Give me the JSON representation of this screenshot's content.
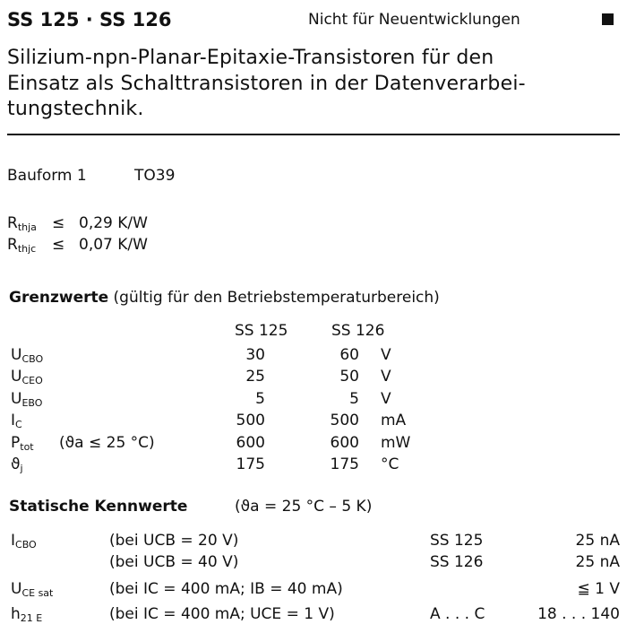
{
  "header": {
    "title": "SS 125 · SS 126",
    "note": "Nicht für Neuentwicklungen",
    "marker_icon": "black-square"
  },
  "description": [
    "Silizium-npn-Planar-Epitaxie-Transistoren  für  den",
    "Einsatz als Schalttransistoren in der Datenverarbei-",
    "tungstechnik."
  ],
  "package": {
    "label": "Bauform 1",
    "value": "TO39"
  },
  "thermal": [
    {
      "symbol": "R",
      "sub": "thja",
      "rel": "≤",
      "value": "0,29 K/W"
    },
    {
      "symbol": "R",
      "sub": "thjc",
      "rel": "≤",
      "value": "0,07 K/W"
    }
  ],
  "limits": {
    "heading": "Grenzwerte",
    "heading_note": "(gültig für den Betriebstemperaturbereich)",
    "columns": [
      "SS 125",
      "SS 126"
    ],
    "rows": [
      {
        "symbol": "U",
        "sub": "CBO",
        "cond": "",
        "v1": "30",
        "v2": "60",
        "unit": "V"
      },
      {
        "symbol": "U",
        "sub": "CEO",
        "cond": "",
        "v1": "25",
        "v2": "50",
        "unit": "V"
      },
      {
        "symbol": "U",
        "sub": "EBO",
        "cond": "",
        "v1": "5",
        "v2": "5",
        "unit": "V"
      },
      {
        "symbol": "I",
        "sub": "C",
        "cond": "",
        "v1": "500",
        "v2": "500",
        "unit": "mA"
      },
      {
        "symbol": "P",
        "sub": "tot",
        "cond": "(ϑa ≤ 25 °C)",
        "v1": "600",
        "v2": "600",
        "unit": "mW"
      },
      {
        "symbol": "ϑ",
        "sub": "j",
        "cond": "",
        "v1": "175",
        "v2": "175",
        "unit": "°C"
      }
    ]
  },
  "static": {
    "heading": "Statische Kennwerte",
    "heading_note": "(ϑa = 25 °C – 5 K)",
    "rows": [
      {
        "symbol": "I",
        "sub": "CBO",
        "cond": "(bei UCB = 20 V)",
        "type": "SS 125",
        "value": "25 nA"
      },
      {
        "symbol": "",
        "sub": "",
        "cond": "(bei UCB = 40 V)",
        "type": "SS 126",
        "value": "25 nA"
      },
      {
        "symbol": "U",
        "sub": "CE sat",
        "cond": "(bei IC = 400 mA; IB = 40 mA)",
        "type": "",
        "value": "≦  1 V"
      },
      {
        "symbol": "h",
        "sub": "21 E",
        "cond": "(bei IC = 400 mA; UCE = 1 V)",
        "type": "A . . . C",
        "value": "18 . . . 140"
      }
    ]
  }
}
